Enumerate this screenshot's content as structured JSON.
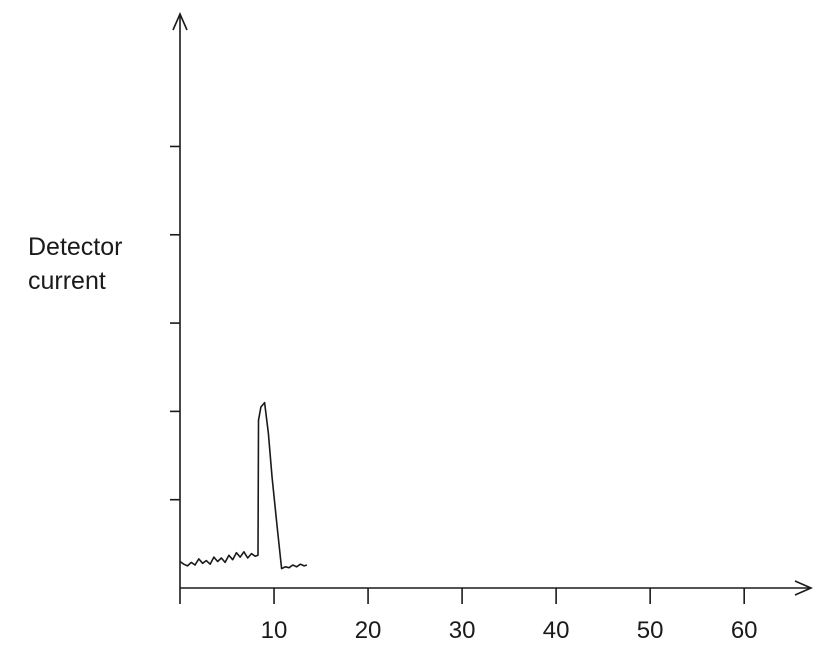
{
  "chart_data": {
    "type": "line",
    "title": "",
    "xlabel": "",
    "ylabel_lines": [
      "Detector",
      "current"
    ],
    "xlim": [
      0,
      67
    ],
    "ylim": [
      0,
      6.5
    ],
    "x_ticks": [
      10,
      20,
      30,
      40,
      50,
      60
    ],
    "x_tick_labels": [
      "10",
      "20",
      "30",
      "40",
      "50",
      "60"
    ],
    "y_ticks": [
      1,
      2,
      3,
      4,
      5
    ],
    "grid": false,
    "series": [
      {
        "x": [
          0.0,
          0.4,
          0.8,
          1.2,
          1.6,
          2.0,
          2.4,
          2.8,
          3.2,
          3.6,
          4.0,
          4.4,
          4.8,
          5.2,
          5.6,
          6.0,
          6.4,
          6.8,
          7.2,
          7.6,
          8.0,
          8.3,
          8.35,
          8.6,
          9.0,
          9.4,
          9.8,
          10.3,
          10.8,
          11.2,
          11.6,
          12.0,
          12.4,
          12.8,
          13.2,
          13.5
        ],
        "y": [
          0.3,
          0.27,
          0.25,
          0.29,
          0.26,
          0.33,
          0.28,
          0.31,
          0.27,
          0.35,
          0.3,
          0.34,
          0.29,
          0.37,
          0.32,
          0.4,
          0.35,
          0.41,
          0.34,
          0.39,
          0.36,
          0.37,
          1.9,
          2.05,
          2.1,
          1.75,
          1.25,
          0.72,
          0.22,
          0.24,
          0.23,
          0.26,
          0.24,
          0.27,
          0.25,
          0.26
        ]
      }
    ]
  }
}
